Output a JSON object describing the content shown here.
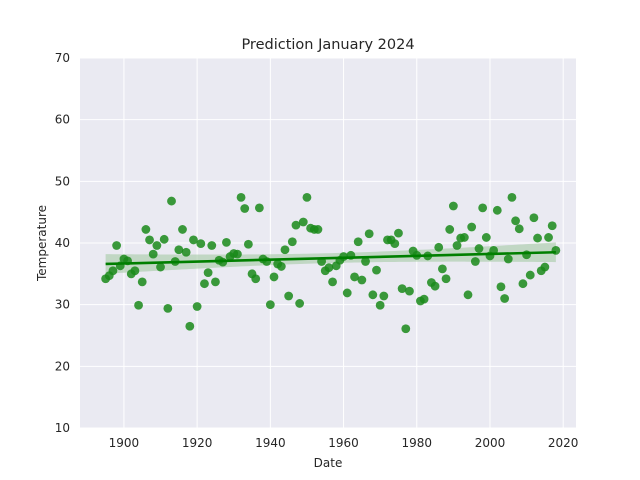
{
  "chart_data": {
    "type": "scatter",
    "title": "Prediction January 2024",
    "xlabel": "Date",
    "ylabel": "Temperature",
    "xlim": [
      1888,
      2023.5
    ],
    "ylim": [
      10,
      70
    ],
    "xticks": [
      1900,
      1920,
      1940,
      1960,
      1980,
      2000,
      2020
    ],
    "yticks": [
      10,
      20,
      30,
      40,
      50,
      60,
      70
    ],
    "grid": true,
    "colors": {
      "points": "#1a8a1a",
      "trend": "#007f00",
      "band": "#9fc79f",
      "background": "#eaeaf2",
      "grid": "#ffffff"
    },
    "series": [
      {
        "values": [
          [
            1895,
            34.2
          ],
          [
            1896,
            34.7
          ],
          [
            1897,
            35.5
          ],
          [
            1898,
            39.6
          ],
          [
            1899,
            36.3
          ],
          [
            1900,
            37.4
          ],
          [
            1901,
            37.1
          ],
          [
            1902,
            35.0
          ],
          [
            1903,
            35.5
          ],
          [
            1904,
            29.9
          ],
          [
            1905,
            33.7
          ],
          [
            1906,
            42.2
          ],
          [
            1907,
            40.5
          ],
          [
            1908,
            38.2
          ],
          [
            1909,
            39.6
          ],
          [
            1910,
            36.1
          ],
          [
            1911,
            40.6
          ],
          [
            1912,
            29.4
          ],
          [
            1913,
            46.8
          ],
          [
            1914,
            37.0
          ],
          [
            1915,
            38.9
          ],
          [
            1916,
            42.2
          ],
          [
            1917,
            38.5
          ],
          [
            1918,
            26.5
          ],
          [
            1919,
            40.5
          ],
          [
            1920,
            29.7
          ],
          [
            1921,
            39.9
          ],
          [
            1922,
            33.4
          ],
          [
            1923,
            35.2
          ],
          [
            1924,
            39.6
          ],
          [
            1925,
            33.7
          ],
          [
            1926,
            37.2
          ],
          [
            1927,
            36.9
          ],
          [
            1928,
            40.1
          ],
          [
            1929,
            37.8
          ],
          [
            1930,
            38.3
          ],
          [
            1931,
            38.2
          ],
          [
            1932,
            47.4
          ],
          [
            1933,
            45.6
          ],
          [
            1934,
            39.8
          ],
          [
            1935,
            35.0
          ],
          [
            1936,
            34.2
          ],
          [
            1937,
            45.7
          ],
          [
            1938,
            37.4
          ],
          [
            1939,
            37.0
          ],
          [
            1940,
            30.0
          ],
          [
            1941,
            34.5
          ],
          [
            1942,
            36.6
          ],
          [
            1943,
            36.2
          ],
          [
            1944,
            38.9
          ],
          [
            1945,
            31.4
          ],
          [
            1946,
            40.2
          ],
          [
            1947,
            42.9
          ],
          [
            1948,
            30.2
          ],
          [
            1949,
            43.4
          ],
          [
            1950,
            47.4
          ],
          [
            1951,
            42.4
          ],
          [
            1952,
            42.2
          ],
          [
            1953,
            42.2
          ],
          [
            1954,
            37.0
          ],
          [
            1955,
            35.5
          ],
          [
            1956,
            36.0
          ],
          [
            1957,
            33.7
          ],
          [
            1958,
            36.3
          ],
          [
            1959,
            37.2
          ],
          [
            1960,
            37.8
          ],
          [
            1961,
            31.9
          ],
          [
            1962,
            38.0
          ],
          [
            1963,
            34.5
          ],
          [
            1964,
            40.2
          ],
          [
            1965,
            34.0
          ],
          [
            1966,
            37.0
          ],
          [
            1967,
            41.5
          ],
          [
            1968,
            31.6
          ],
          [
            1969,
            35.6
          ],
          [
            1970,
            29.9
          ],
          [
            1971,
            31.4
          ],
          [
            1972,
            40.5
          ],
          [
            1973,
            40.5
          ],
          [
            1974,
            39.9
          ],
          [
            1975,
            41.6
          ],
          [
            1976,
            32.6
          ],
          [
            1977,
            26.1
          ],
          [
            1978,
            32.2
          ],
          [
            1979,
            38.7
          ],
          [
            1980,
            38.0
          ],
          [
            1981,
            30.6
          ],
          [
            1982,
            30.9
          ],
          [
            1983,
            37.9
          ],
          [
            1984,
            33.6
          ],
          [
            1985,
            33.0
          ],
          [
            1986,
            39.3
          ],
          [
            1987,
            35.8
          ],
          [
            1988,
            34.2
          ],
          [
            1989,
            42.2
          ],
          [
            1990,
            46.0
          ],
          [
            1991,
            39.6
          ],
          [
            1992,
            40.8
          ],
          [
            1993,
            40.9
          ],
          [
            1994,
            31.6
          ],
          [
            1995,
            42.6
          ],
          [
            1996,
            37.0
          ],
          [
            1997,
            39.1
          ],
          [
            1998,
            45.7
          ],
          [
            1999,
            40.9
          ],
          [
            2000,
            37.9
          ],
          [
            2001,
            38.8
          ],
          [
            2002,
            45.3
          ],
          [
            2003,
            32.9
          ],
          [
            2004,
            31.0
          ],
          [
            2005,
            37.4
          ],
          [
            2006,
            47.4
          ],
          [
            2007,
            43.6
          ],
          [
            2008,
            42.3
          ],
          [
            2009,
            33.4
          ],
          [
            2010,
            38.1
          ],
          [
            2011,
            34.8
          ],
          [
            2012,
            44.1
          ],
          [
            2013,
            40.8
          ],
          [
            2014,
            35.5
          ],
          [
            2015,
            36.1
          ],
          [
            2016,
            40.9
          ],
          [
            2017,
            42.8
          ],
          [
            2018,
            38.8
          ]
        ]
      }
    ],
    "trend": {
      "x": [
        1895,
        2018
      ],
      "y": [
        36.6,
        38.5
      ]
    }
  }
}
